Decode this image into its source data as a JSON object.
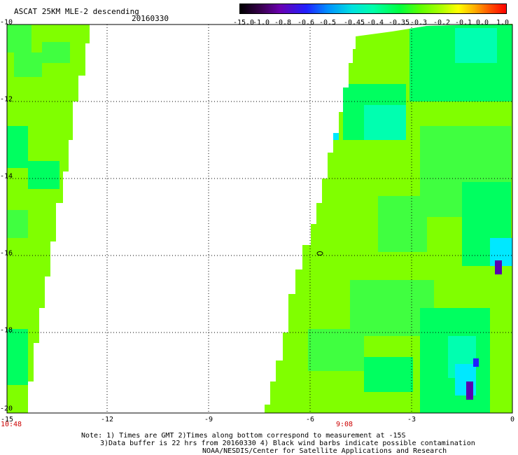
{
  "title": "ASCAT 25KM MLE-2 descending",
  "date": "20160330",
  "colorbar": {
    "labels": [
      "-15.0",
      "-1.0",
      "-0.8",
      "-0.6",
      "-0.5",
      "-0.45",
      "-0.4",
      "-0.35",
      "-0.3",
      "-0.2",
      "-0.1",
      "0.0",
      "1.0"
    ],
    "colors": [
      "#000000",
      "#6a00b0",
      "#2020ff",
      "#0090ff",
      "#00e0e0",
      "#00ffaa",
      "#00ff40",
      "#60ff00",
      "#b0ff00",
      "#ffff00",
      "#ffb000",
      "#ff0000"
    ]
  },
  "axes": {
    "y_ticks": [
      "-10",
      "-12",
      "-14",
      "-16",
      "-18",
      "-20"
    ],
    "x_ticks": [
      "-15",
      "-12",
      "-9",
      "-6",
      "-3",
      "0"
    ],
    "times": [
      "10:48",
      "9:08"
    ]
  },
  "notes": {
    "line1": "Note: 1) Times are GMT 2)Times along bottom correspond to measurement at -15S",
    "line2": "3)Data buffer is 22 hrs from 20160330 4) Black wind barbs indicate possible contamination",
    "line3": "NOAA/NESDIS/Center for Satellite Applications and Research"
  },
  "swath_colors": {
    "base": "#80ff00",
    "mid": "#40ff40",
    "green": "#00ff60",
    "aqua": "#00ffb0",
    "cyan": "#00e8ff",
    "blue": "#2020ff",
    "purple": "#5a00b0"
  }
}
